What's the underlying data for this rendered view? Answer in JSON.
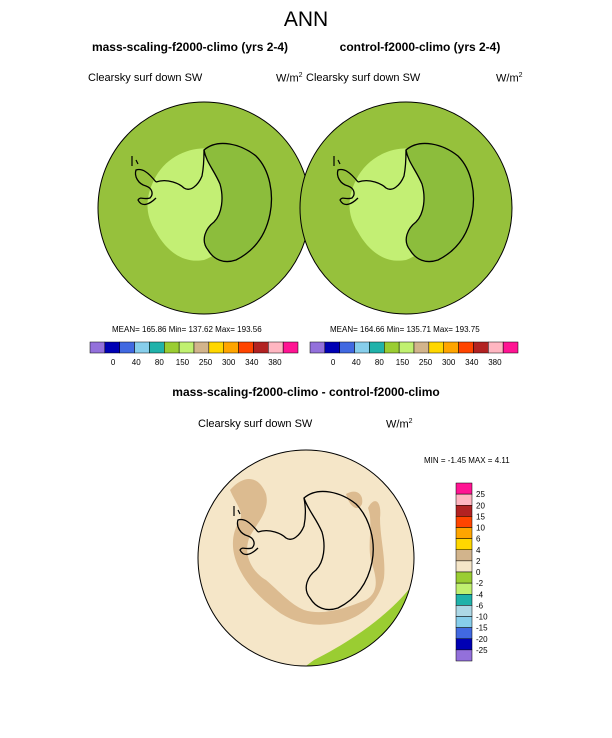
{
  "title": "ANN",
  "units": "W/m",
  "units_sup": "2",
  "panels": [
    {
      "case": "mass-scaling-f2000-climo (yrs 2-4)",
      "variable": "Clearsky surf down SW",
      "stats": "MEAN= 165.86  Min= 137.62  Max= 193.56"
    },
    {
      "case": "control-f2000-climo (yrs 2-4)",
      "variable": "Clearsky surf down SW",
      "stats": "MEAN= 164.66  Min= 135.71  Max= 193.75"
    }
  ],
  "diff": {
    "title": "mass-scaling-f2000-climo - control-f2000-climo",
    "variable": "Clearsky surf down SW",
    "stats": "MIN =  -1.45 MAX =   4.11"
  },
  "chart_data": [
    {
      "type": "heatmap",
      "title": "mass-scaling-f2000-climo (yrs 2-4)",
      "subtitle": "Clearsky surf down SW",
      "units": "W/m2",
      "mean": 165.86,
      "min": 137.62,
      "max": 193.56,
      "colorbar": {
        "levels": [
          0,
          40,
          80,
          100,
          120,
          150,
          200,
          250,
          300,
          340,
          380
        ],
        "tick_labels": [
          "0",
          "40",
          "80",
          "150",
          "250",
          "300",
          "340",
          "380"
        ],
        "colors": [
          "#9370db",
          "#0000b4",
          "#4169e1",
          "#87ceeb",
          "#20b2aa",
          "#9acd32",
          "#c0f070",
          "#d2b48c",
          "#ffd700",
          "#ffa500",
          "#ff4500",
          "#b22222",
          "#ffb6c1",
          "#ff1493"
        ]
      }
    },
    {
      "type": "heatmap",
      "title": "control-f2000-climo (yrs 2-4)",
      "subtitle": "Clearsky surf down SW",
      "units": "W/m2",
      "mean": 164.66,
      "min": 135.71,
      "max": 193.75,
      "colorbar": {
        "levels": [
          0,
          40,
          80,
          100,
          120,
          150,
          200,
          250,
          300,
          340,
          380
        ],
        "tick_labels": [
          "0",
          "40",
          "80",
          "150",
          "250",
          "300",
          "340",
          "380"
        ],
        "colors": [
          "#9370db",
          "#0000b4",
          "#4169e1",
          "#87ceeb",
          "#20b2aa",
          "#9acd32",
          "#c0f070",
          "#d2b48c",
          "#ffd700",
          "#ffa500",
          "#ff4500",
          "#b22222",
          "#ffb6c1",
          "#ff1493"
        ]
      }
    },
    {
      "type": "heatmap",
      "title": "mass-scaling-f2000-climo - control-f2000-climo",
      "subtitle": "Clearsky surf down SW",
      "units": "W/m2",
      "min": -1.45,
      "max": 4.11,
      "colorbar": {
        "levels": [
          25,
          20,
          15,
          10,
          6,
          4,
          2,
          0,
          -2,
          -4,
          -6,
          -10,
          -15,
          -20,
          -25
        ],
        "tick_labels": [
          "25",
          "20",
          "15",
          "10",
          "6",
          "4",
          "2",
          "0",
          "-2",
          "-4",
          "-6",
          "-10",
          "-15",
          "-20",
          "-25"
        ],
        "colors": [
          "#ff1493",
          "#ffb6c1",
          "#b22222",
          "#ff4500",
          "#ffa500",
          "#ffd700",
          "#d2b48c",
          "#f5e6c8",
          "#9acd32",
          "#c0f070",
          "#20b2aa",
          "#add8e6",
          "#87ceeb",
          "#4169e1",
          "#0000b4",
          "#9370db"
        ]
      }
    }
  ]
}
